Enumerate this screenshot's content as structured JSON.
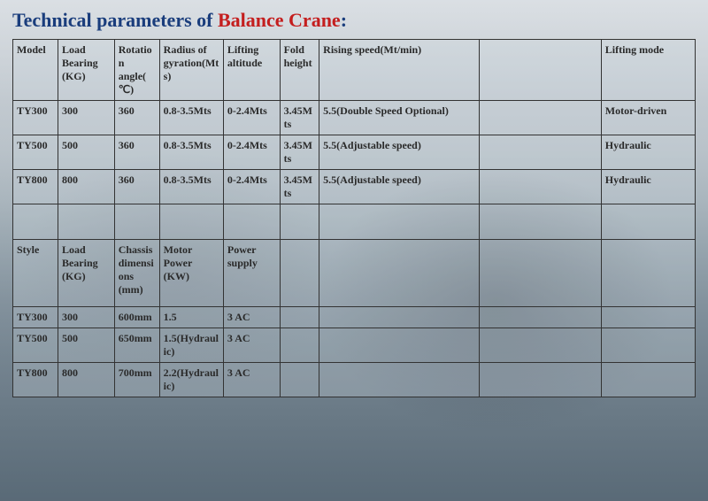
{
  "title": {
    "prefix": "Technical parameters of ",
    "accent": "Balance Crane",
    "suffix": ":"
  },
  "table1": {
    "headers": [
      "Model",
      "Load Bearing (KG)",
      "Rotation angle(℃)",
      "Radius of gyration(Mts)",
      "Lifting altitude",
      "Fold height",
      "Rising speed(Mt/min)",
      "",
      "Lifting mode"
    ],
    "rows": [
      [
        "TY300",
        "300",
        "360",
        "0.8-3.5Mts",
        "0-2.4Mts",
        "3.45Mts",
        "5.5(Double Speed Optional)",
        "",
        "Motor-driven"
      ],
      [
        "TY500",
        "500",
        "360",
        "0.8-3.5Mts",
        "0-2.4Mts",
        "3.45Mts",
        "5.5(Adjustable speed)",
        "",
        "Hydraulic"
      ],
      [
        "TY800",
        "800",
        "360",
        "0.8-3.5Mts",
        "0-2.4Mts",
        "3.45Mts",
        "5.5(Adjustable speed)",
        "",
        "Hydraulic"
      ]
    ]
  },
  "table2": {
    "headers": [
      "Style",
      "Load Bearing (KG)",
      "Chassis dimensions (mm)",
      "Motor Power (KW)",
      "Power supply",
      "",
      "",
      "",
      ""
    ],
    "rows": [
      [
        "TY300",
        "300",
        "600mm",
        "1.5",
        "3 AC",
        "",
        "",
        "",
        ""
      ],
      [
        "TY500",
        "500",
        "650mm",
        "1.5(Hydraulic)",
        "3 AC",
        "",
        "",
        "",
        ""
      ],
      [
        "TY800",
        "800",
        "700mm",
        "2.2(Hydraulic)",
        "3 AC",
        "",
        "",
        "",
        ""
      ]
    ]
  },
  "colors": {
    "title_blue": "#1a3d7c",
    "title_red": "#c41e1e",
    "border": "#333333",
    "text": "#2a2a2a"
  }
}
